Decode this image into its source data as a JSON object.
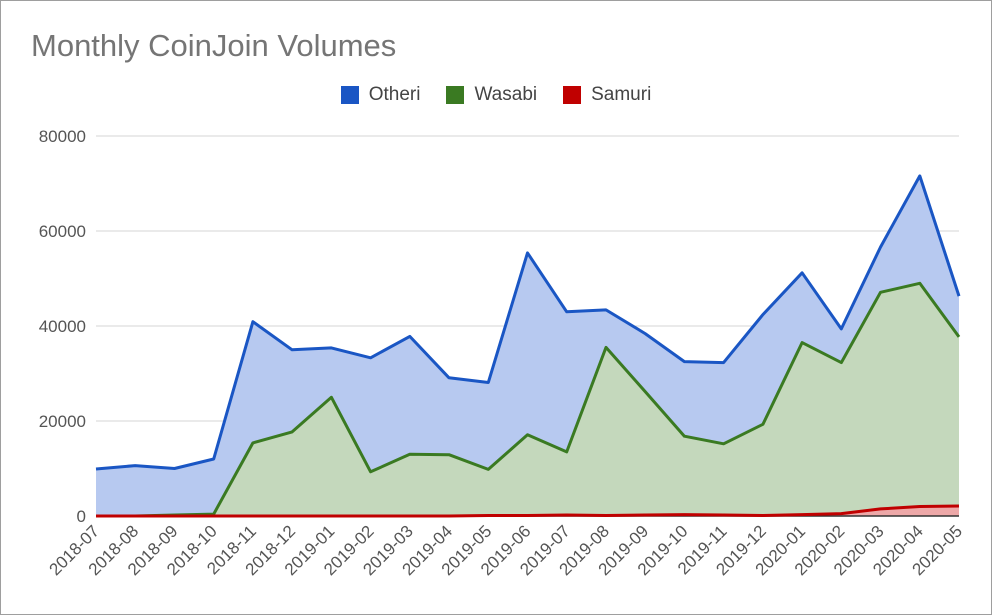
{
  "chart_data": {
    "type": "area",
    "stacked": true,
    "title": "Monthly CoinJoin Volumes",
    "xlabel": "",
    "ylabel": "",
    "ylim": [
      0,
      80000
    ],
    "yticks": [
      0,
      20000,
      40000,
      60000,
      80000
    ],
    "grid": true,
    "legend_position": "top",
    "categories": [
      "2018-07",
      "2018-08",
      "2018-09",
      "2018-10",
      "2018-11",
      "2018-12",
      "2019-01",
      "2019-02",
      "2019-03",
      "2019-04",
      "2019-05",
      "2019-06",
      "2019-07",
      "2019-08",
      "2019-09",
      "2019-10",
      "2019-11",
      "2019-12",
      "2020-01",
      "2020-02",
      "2020-03",
      "2020-04",
      "2020-05"
    ],
    "series": [
      {
        "name": "Otheri",
        "color": "#1a56c4",
        "fill": "#b7c9f0",
        "values": [
          9900,
          10600,
          9800,
          11600,
          25500,
          17300,
          10400,
          24000,
          24800,
          16200,
          18300,
          38300,
          29500,
          7900,
          12200,
          15700,
          17100,
          23100,
          14700,
          7100,
          9500,
          22600,
          8600
        ]
      },
      {
        "name": "Wasabi",
        "color": "#3a7a22",
        "fill": "#c4d8bc",
        "values": [
          0,
          0,
          200,
          400,
          15400,
          17700,
          25000,
          9300,
          13000,
          12900,
          9700,
          17000,
          13300,
          35400,
          26000,
          16500,
          15000,
          19200,
          36200,
          31800,
          45600,
          47000,
          35600
        ]
      },
      {
        "name": "Samuri",
        "color": "#c00000",
        "fill": "#eda8a8",
        "values": [
          0,
          0,
          0,
          0,
          0,
          0,
          0,
          0,
          0,
          0,
          100,
          100,
          200,
          100,
          200,
          300,
          200,
          100,
          300,
          500,
          1500,
          2000,
          2100
        ]
      }
    ]
  }
}
